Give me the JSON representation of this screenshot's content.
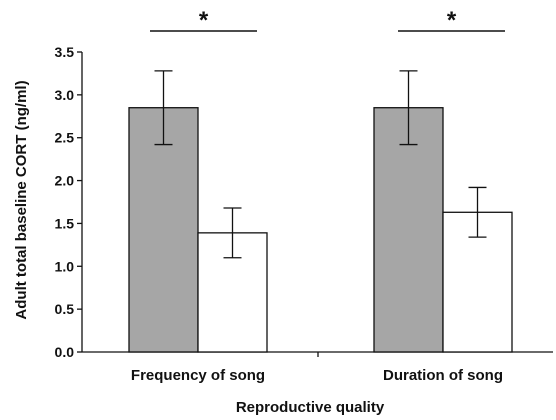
{
  "chart_data": {
    "type": "bar",
    "title": "",
    "xlabel": "Reproductive quality",
    "ylabel": "Adult total baseline CORT (ng/ml)",
    "ylim": [
      0,
      3.5
    ],
    "yticks": [
      "0.0",
      "0.5",
      "1.0",
      "1.5",
      "2.0",
      "2.5",
      "3.0",
      "3.5"
    ],
    "categories": [
      "Frequency of song",
      "Duration of song"
    ],
    "series": [
      {
        "values": [
          2.85,
          2.85
        ],
        "errors": [
          0.43,
          0.43
        ],
        "color": "#a6a6a6"
      },
      {
        "values": [
          1.39,
          1.63
        ],
        "errors": [
          0.29,
          0.29
        ],
        "color": "#ffffff"
      }
    ],
    "significance": [
      "*",
      "*"
    ],
    "grid": false,
    "legend": "none"
  }
}
